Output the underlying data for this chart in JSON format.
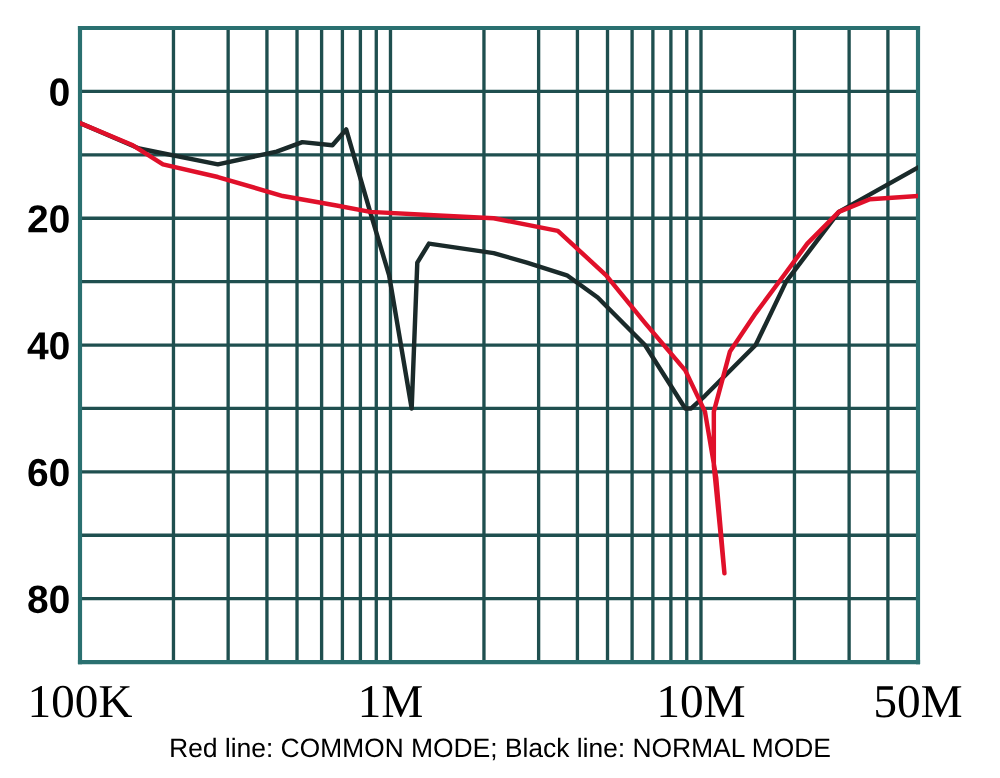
{
  "chart_data": {
    "type": "line",
    "log": "x",
    "xlim": [
      100000,
      50000000
    ],
    "xticks": [
      {
        "value": 100000,
        "label": "100K"
      },
      {
        "value": 200000,
        "label": null
      },
      {
        "value": 300000,
        "label": null
      },
      {
        "value": 400000,
        "label": null
      },
      {
        "value": 500000,
        "label": null
      },
      {
        "value": 600000,
        "label": null
      },
      {
        "value": 700000,
        "label": null
      },
      {
        "value": 800000,
        "label": null
      },
      {
        "value": 900000,
        "label": null
      },
      {
        "value": 1000000,
        "label": "1M"
      },
      {
        "value": 2000000,
        "label": null
      },
      {
        "value": 3000000,
        "label": null
      },
      {
        "value": 4000000,
        "label": null
      },
      {
        "value": 5000000,
        "label": null
      },
      {
        "value": 6000000,
        "label": null
      },
      {
        "value": 7000000,
        "label": null
      },
      {
        "value": 8000000,
        "label": null
      },
      {
        "value": 9000000,
        "label": null
      },
      {
        "value": 10000000,
        "label": "10M"
      },
      {
        "value": 20000000,
        "label": null
      },
      {
        "value": 30000000,
        "label": null
      },
      {
        "value": 40000000,
        "label": null
      },
      {
        "value": 50000000,
        "label": "50M"
      }
    ],
    "ylim": [
      90,
      -10
    ],
    "yticks": [
      0,
      {
        "value": 10,
        "label": null
      },
      20,
      {
        "value": 30,
        "label": null
      },
      40,
      {
        "value": 50,
        "label": null
      },
      60,
      {
        "value": 70,
        "label": null
      },
      80
    ],
    "grid": true,
    "series": [
      {
        "color": "#1a2a2a",
        "x": [
          100000,
          155000,
          278000,
          430000,
          520000,
          650000,
          720000,
          860000,
          990000,
          1170000,
          1220000,
          1330000,
          2150000,
          2750000,
          3700000,
          4650000,
          6600000,
          8900000,
          9300000,
          10300000,
          15000000,
          18800000,
          27800000,
          50000000
        ],
        "values": [
          5,
          9,
          11.5,
          9.5,
          8,
          8.5,
          6,
          19,
          29,
          50,
          27,
          24,
          25.5,
          27,
          29,
          32.5,
          40,
          50,
          50,
          48,
          40,
          30,
          19,
          12
        ]
      },
      {
        "color": "#e0102a",
        "x": [
          100000,
          148000,
          185000,
          278000,
          450000,
          670000,
          860000,
          1330000,
          2150000,
          3460000,
          4950000,
          6600000,
          8900000,
          10300000,
          11200000,
          11900000,
          11000000,
          11000000,
          12400000,
          15000000,
          18500000,
          22000000,
          27800000,
          35000000,
          50000000
        ],
        "values": [
          5,
          8.5,
          11.5,
          13.5,
          16.5,
          18,
          19,
          19.5,
          20,
          22,
          29,
          36.5,
          44,
          50.5,
          61,
          76,
          59,
          50.5,
          41,
          35,
          29,
          24,
          19,
          17,
          16.5
        ]
      }
    ],
    "annotations": [
      "Red line: COMMON MODE; Black line: NORMAL MODE"
    ]
  }
}
